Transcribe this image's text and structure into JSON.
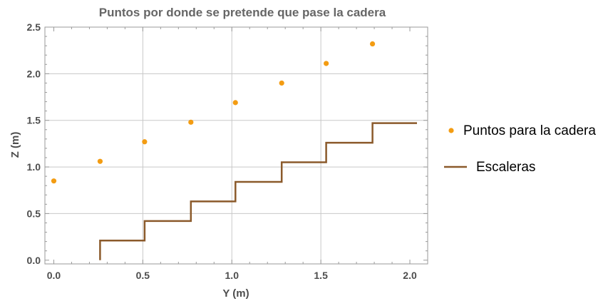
{
  "chart_data": {
    "type": "scatter",
    "title": "Puntos por donde se pretende que pase la cadera",
    "xlabel": "Y (m)",
    "ylabel": "Z (m)",
    "xlim": [
      -0.05,
      2.1
    ],
    "ylim": [
      -0.04,
      2.5
    ],
    "xticks": [
      "0.0",
      "0.5",
      "1.0",
      "1.5",
      "2.0"
    ],
    "yticks": [
      "0.0",
      "0.5",
      "1.0",
      "1.5",
      "2.0",
      "2.5"
    ],
    "xtick_values": [
      0,
      0.5,
      1,
      1.5,
      2
    ],
    "ytick_values": [
      0,
      0.5,
      1,
      1.5,
      2,
      2.5
    ],
    "grid_x": [
      0.5,
      1.0,
      1.5
    ],
    "grid_y": [
      0.5,
      1.0,
      1.5,
      2.0
    ],
    "legend_position": "right",
    "series": [
      {
        "name": "Puntos para la cadera",
        "kind": "scatter",
        "color": "#f39c12",
        "points": [
          [
            0.0,
            0.85
          ],
          [
            0.26,
            1.06
          ],
          [
            0.51,
            1.27
          ],
          [
            0.77,
            1.48
          ],
          [
            1.02,
            1.69
          ],
          [
            1.28,
            1.9
          ],
          [
            1.53,
            2.11
          ],
          [
            1.79,
            2.32
          ]
        ]
      },
      {
        "name": "Escaleras",
        "kind": "line",
        "color": "#8b5a2b",
        "points": [
          [
            0.26,
            0.0
          ],
          [
            0.26,
            0.21
          ],
          [
            0.51,
            0.21
          ],
          [
            0.51,
            0.42
          ],
          [
            0.77,
            0.42
          ],
          [
            0.77,
            0.63
          ],
          [
            1.02,
            0.63
          ],
          [
            1.02,
            0.84
          ],
          [
            1.28,
            0.84
          ],
          [
            1.28,
            1.05
          ],
          [
            1.53,
            1.05
          ],
          [
            1.53,
            1.26
          ],
          [
            1.79,
            1.26
          ],
          [
            1.79,
            1.47
          ],
          [
            2.04,
            1.47
          ]
        ]
      }
    ]
  }
}
